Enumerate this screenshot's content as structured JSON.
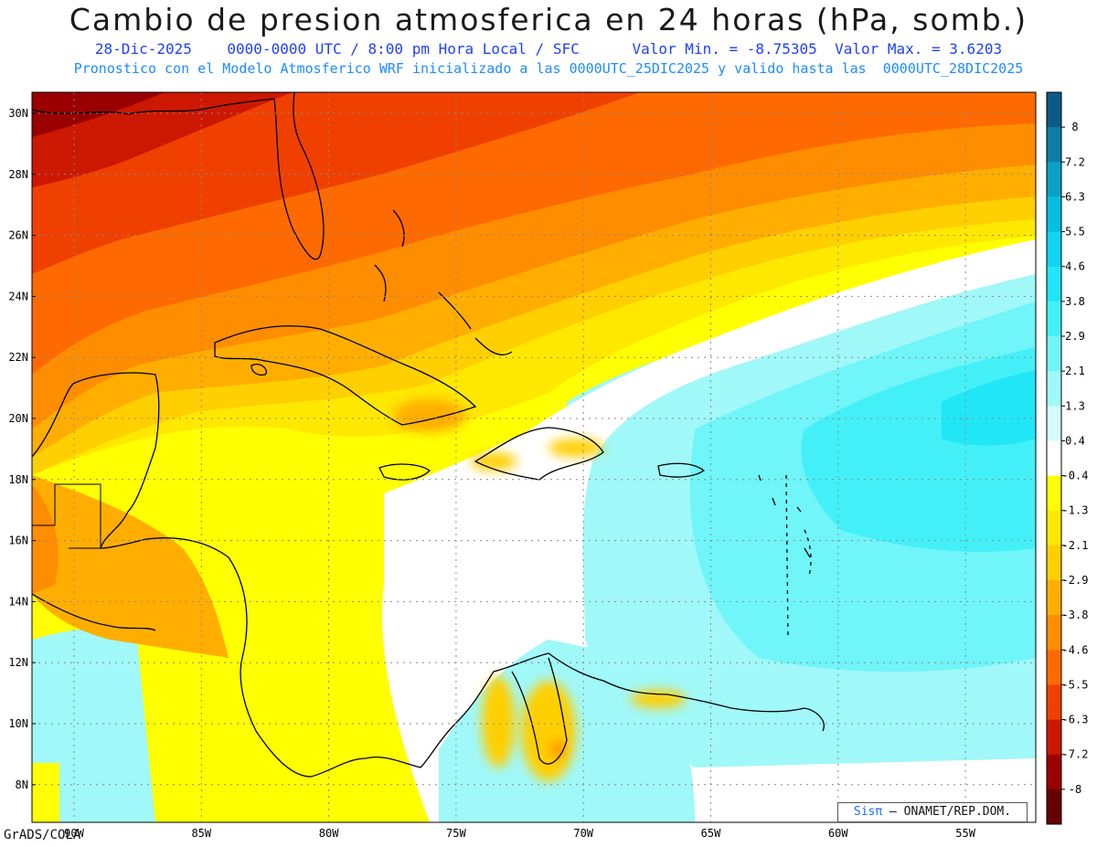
{
  "header": {
    "title": "Cambio de presion atmosferica en 24 horas (hPa, somb.)",
    "subtitle_line1": "28-Dic-2025    0000-0000 UTC / 8:00 pm Hora Local / SFC      Valor Min. = -8.75305  Valor Max. = 3.6203",
    "subtitle_line2": "Pronostico con el Modelo Atmosferico WRF inicializado a las 0000UTC_25DIC2025 y valido hasta las  0000UTC_28DIC2025"
  },
  "map": {
    "lat_labels": [
      "30N",
      "28N",
      "26N",
      "24N",
      "22N",
      "20N",
      "18N",
      "16N",
      "14N",
      "12N",
      "10N",
      "8N"
    ],
    "lon_labels": [
      "90W",
      "85W",
      "80W",
      "75W",
      "70W",
      "65W",
      "60W",
      "55W"
    ],
    "colorbar": {
      "labels": [
        "8",
        "7.2",
        "6.3",
        "5.5",
        "4.6",
        "3.8",
        "2.9",
        "2.1",
        "1.3",
        "0.4",
        "-0.4",
        "-1.3",
        "-2.1",
        "-2.9",
        "-3.8",
        "-4.6",
        "-5.5",
        "-6.3",
        "-7.2",
        "-8"
      ],
      "colors": [
        "#0e5a87",
        "#0d7fa6",
        "#0aa1c6",
        "#08bde0",
        "#10d4f0",
        "#20e6f6",
        "#44f0f7",
        "#70f5f8",
        "#a0f8f8",
        "#d2fcfc",
        "#ffffff",
        "#ffff00",
        "#ffe800",
        "#ffcf00",
        "#ffae00",
        "#ff8d00",
        "#ff6a00",
        "#f04000",
        "#cc1800",
        "#9a0000",
        "#660000"
      ]
    }
  },
  "footer": {
    "credit": "GrADS/COLA",
    "sis": "Sisπ",
    "org": "– ONAMET/REP.DOM."
  }
}
